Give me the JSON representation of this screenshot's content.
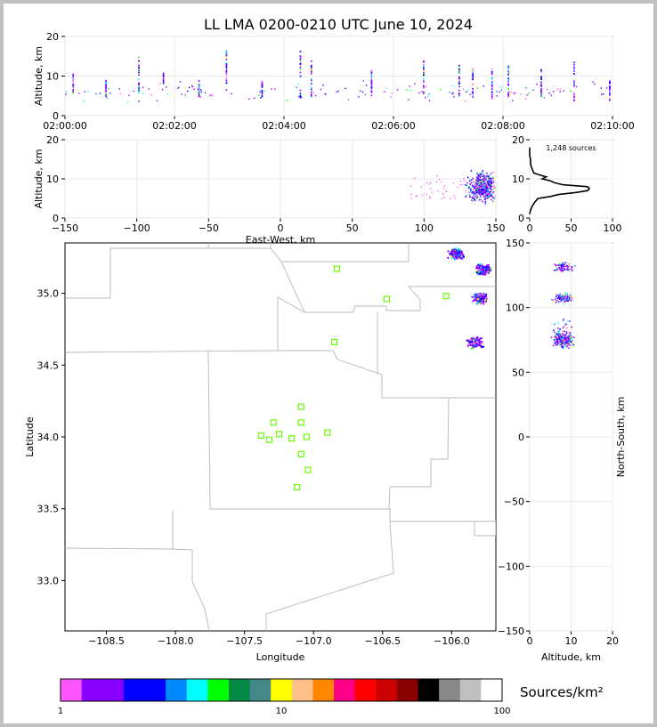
{
  "title": "LL LMA 0200-0210 UTC June 10, 2024",
  "chart_data": [
    {
      "panel": "time-altitude",
      "type": "scatter",
      "ylabel": "Altitude, km",
      "xlim": [
        "02:00:00",
        "02:10:00"
      ],
      "ylim": [
        0,
        20
      ],
      "x_ticks": [
        "02:00:00",
        "02:02:00",
        "02:04:00",
        "02:06:00",
        "02:08:00",
        "02:10:00"
      ],
      "y_ticks": [
        "0",
        "10",
        "20"
      ],
      "flash_columns": [
        {
          "t_min": 0.15,
          "alt_min": 6,
          "alt_max": 11
        },
        {
          "t_min": 0.75,
          "alt_min": 5,
          "alt_max": 9
        },
        {
          "t_min": 1.35,
          "alt_min": 6,
          "alt_max": 15
        },
        {
          "t_min": 1.8,
          "alt_min": 8,
          "alt_max": 11
        },
        {
          "t_min": 2.45,
          "alt_min": 5,
          "alt_max": 9
        },
        {
          "t_min": 2.95,
          "alt_min": 4,
          "alt_max": 17
        },
        {
          "t_min": 3.6,
          "alt_min": 5,
          "alt_max": 9
        },
        {
          "t_min": 4.3,
          "alt_min": 4,
          "alt_max": 17
        },
        {
          "t_min": 4.5,
          "alt_min": 5,
          "alt_max": 14
        },
        {
          "t_min": 5.6,
          "alt_min": 5,
          "alt_max": 12
        },
        {
          "t_min": 6.55,
          "alt_min": 5,
          "alt_max": 14
        },
        {
          "t_min": 7.2,
          "alt_min": 5,
          "alt_max": 13
        },
        {
          "t_min": 7.45,
          "alt_min": 5,
          "alt_max": 12
        },
        {
          "t_min": 7.8,
          "alt_min": 4,
          "alt_max": 12
        },
        {
          "t_min": 8.1,
          "alt_min": 5,
          "alt_max": 13
        },
        {
          "t_min": 8.7,
          "alt_min": 5,
          "alt_max": 12
        },
        {
          "t_min": 9.3,
          "alt_min": 4,
          "alt_max": 14
        },
        {
          "t_min": 9.95,
          "alt_min": 4,
          "alt_max": 9
        }
      ]
    },
    {
      "panel": "eastwest-altitude",
      "type": "scatter",
      "xlabel": "East-West, km",
      "ylabel": "Altitude, km",
      "xlim": [
        -150,
        150
      ],
      "ylim": [
        0,
        20
      ],
      "x_ticks": [
        "−150",
        "−100",
        "−50",
        "0",
        "50",
        "100",
        "150"
      ],
      "y_ticks": [
        "0",
        "10",
        "20"
      ]
    },
    {
      "panel": "altitude-histogram",
      "type": "line",
      "annotation": "1,248 sources",
      "xlim": [
        0,
        100
      ],
      "ylim": [
        0,
        20
      ],
      "x_ticks": [
        "0",
        "50",
        "100"
      ],
      "y_ticks": [
        "0",
        "10",
        "20"
      ],
      "profile": [
        [
          0,
          1
        ],
        [
          1,
          2
        ],
        [
          3,
          3
        ],
        [
          6,
          4
        ],
        [
          10,
          5
        ],
        [
          25,
          5.5
        ],
        [
          35,
          6
        ],
        [
          55,
          6.5
        ],
        [
          70,
          7
        ],
        [
          72,
          7.5
        ],
        [
          70,
          8
        ],
        [
          40,
          8.5
        ],
        [
          30,
          9
        ],
        [
          25,
          9.5
        ],
        [
          15,
          10
        ],
        [
          20,
          10.5
        ],
        [
          12,
          11
        ],
        [
          5,
          11.5
        ],
        [
          4,
          12
        ],
        [
          2,
          13
        ],
        [
          1,
          14
        ],
        [
          1,
          15
        ],
        [
          0,
          16
        ],
        [
          0,
          18
        ]
      ]
    },
    {
      "panel": "plan-view",
      "type": "scatter",
      "xlabel": "Longitude",
      "ylabel": "Latitude",
      "xlim": [
        -108.8,
        -105.68
      ],
      "ylim": [
        32.65,
        35.35
      ],
      "x_ticks": [
        "−108.5",
        "−108.0",
        "−107.5",
        "−107.0",
        "−106.5",
        "−106.0"
      ],
      "y_ticks": [
        "33.0",
        "33.5",
        "34.0",
        "34.5",
        "35.0"
      ],
      "stations": [
        [
          -106.83,
          35.17
        ],
        [
          -106.47,
          34.96
        ],
        [
          -106.04,
          34.98
        ],
        [
          -106.85,
          34.66
        ],
        [
          -107.09,
          34.21
        ],
        [
          -107.29,
          34.1
        ],
        [
          -107.09,
          34.1
        ],
        [
          -107.25,
          34.02
        ],
        [
          -106.9,
          34.03
        ],
        [
          -107.38,
          34.01
        ],
        [
          -107.32,
          33.98
        ],
        [
          -107.16,
          33.99
        ],
        [
          -107.05,
          34.0
        ],
        [
          -107.09,
          33.88
        ],
        [
          -107.04,
          33.77
        ],
        [
          -107.12,
          33.65
        ]
      ],
      "source_clusters": [
        {
          "lon": -105.78,
          "lat": 35.17
        },
        {
          "lon": -105.8,
          "lat": 34.97
        },
        {
          "lon": -105.84,
          "lat": 34.66
        },
        {
          "lon": -105.97,
          "lat": 35.28
        }
      ]
    },
    {
      "panel": "altitude-northsouth",
      "type": "scatter",
      "xlabel": "Altitude, km",
      "ylabel": "North-South, km",
      "xlim": [
        0,
        20
      ],
      "ylim": [
        -150,
        150
      ],
      "x_ticks": [
        "0",
        "10",
        "20"
      ],
      "y_ticks": [
        "−150",
        "−100",
        "−50",
        "0",
        "50",
        "100",
        "150"
      ]
    },
    {
      "panel": "colorbar",
      "type": "heatmap",
      "label": "Sources/km²",
      "scale": "log",
      "range": [
        1,
        100
      ],
      "tick_labels": [
        "1",
        "10",
        "100"
      ],
      "colors": [
        "#ff55ff",
        "#8800ff",
        "#8800ff",
        "#0000ff",
        "#0000ff",
        "#0088ff",
        "#00ffff",
        "#00ff00",
        "#008844",
        "#448888",
        "#ffff00",
        "#ffc088",
        "#ff8800",
        "#ff0088",
        "#ff0000",
        "#cc0000",
        "#880000",
        "#000000",
        "#888888",
        "#c0c0c0",
        "#ffffff"
      ]
    }
  ]
}
